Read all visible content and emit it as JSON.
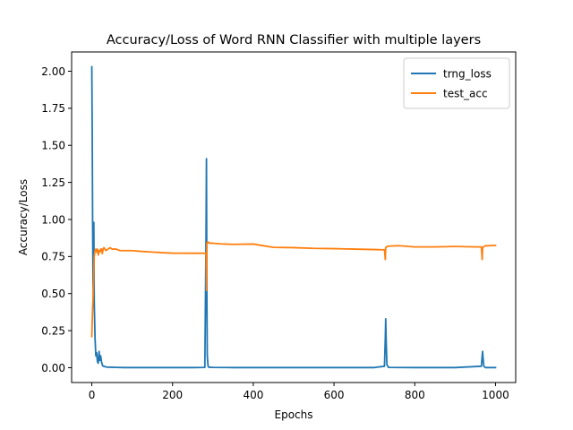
{
  "chart_data": {
    "type": "line",
    "title": "Accuracy/Loss of Word RNN Classifier with multiple layers",
    "xlabel": "Epochs",
    "ylabel": "Accuracy/Loss",
    "xlim": [
      -50,
      1050
    ],
    "ylim": [
      -0.1,
      2.13
    ],
    "xticks": [
      0,
      200,
      400,
      600,
      800,
      1000
    ],
    "yticks": [
      0.0,
      0.25,
      0.5,
      0.75,
      1.0,
      1.25,
      1.5,
      1.75,
      2.0
    ],
    "xtick_labels": [
      "0",
      "200",
      "400",
      "600",
      "800",
      "1000"
    ],
    "ytick_labels": [
      "0.00",
      "0.25",
      "0.50",
      "0.75",
      "1.00",
      "1.25",
      "1.50",
      "1.75",
      "2.00"
    ],
    "legend_position": "upper right",
    "grid": false,
    "series": [
      {
        "name": "trng_loss",
        "color": "#1f77b4",
        "x": [
          0,
          1,
          2,
          3,
          4,
          5,
          6,
          8,
          10,
          12,
          14,
          16,
          18,
          20,
          22,
          24,
          26,
          28,
          30,
          35,
          40,
          50,
          60,
          80,
          100,
          150,
          200,
          250,
          280,
          283,
          284,
          285,
          286,
          288,
          290,
          300,
          350,
          400,
          500,
          600,
          700,
          725,
          727,
          728,
          729,
          731,
          735,
          800,
          900,
          965,
          967,
          968,
          969,
          971,
          975,
          1000
        ],
        "y": [
          2.03,
          1.6,
          0.99,
          0.6,
          0.42,
          0.98,
          0.45,
          0.2,
          0.08,
          0.1,
          0.04,
          0.03,
          0.11,
          0.05,
          0.08,
          0.04,
          0.02,
          0.01,
          0.01,
          0.005,
          0.004,
          0.003,
          0.002,
          0.001,
          0.001,
          0.001,
          0.001,
          0.001,
          0.002,
          0.9,
          1.41,
          0.5,
          0.08,
          0.01,
          0.003,
          0.002,
          0.001,
          0.001,
          0.001,
          0.001,
          0.001,
          0.01,
          0.2,
          0.33,
          0.2,
          0.02,
          0.002,
          0.001,
          0.001,
          0.01,
          0.08,
          0.11,
          0.07,
          0.01,
          0.001,
          0.001
        ]
      },
      {
        "name": "test_acc",
        "color": "#ff7f0e",
        "x": [
          0,
          2,
          4,
          6,
          8,
          10,
          12,
          14,
          16,
          18,
          20,
          22,
          24,
          26,
          28,
          30,
          35,
          40,
          45,
          50,
          60,
          70,
          80,
          100,
          120,
          150,
          180,
          200,
          240,
          283,
          284,
          285,
          287,
          290,
          300,
          320,
          350,
          400,
          420,
          450,
          500,
          550,
          600,
          650,
          700,
          725,
          727,
          728,
          730,
          735,
          760,
          800,
          850,
          900,
          950,
          965,
          967,
          968,
          970,
          975,
          1000
        ],
        "y": [
          0.21,
          0.4,
          0.52,
          0.75,
          0.79,
          0.8,
          0.78,
          0.8,
          0.76,
          0.79,
          0.78,
          0.8,
          0.8,
          0.77,
          0.8,
          0.81,
          0.79,
          0.8,
          0.81,
          0.8,
          0.8,
          0.79,
          0.79,
          0.79,
          0.785,
          0.78,
          0.775,
          0.773,
          0.772,
          0.772,
          0.52,
          0.84,
          0.85,
          0.84,
          0.84,
          0.835,
          0.832,
          0.834,
          0.825,
          0.812,
          0.81,
          0.805,
          0.803,
          0.8,
          0.797,
          0.795,
          0.73,
          0.81,
          0.815,
          0.82,
          0.823,
          0.815,
          0.815,
          0.818,
          0.815,
          0.815,
          0.73,
          0.81,
          0.815,
          0.822,
          0.825
        ]
      }
    ]
  }
}
